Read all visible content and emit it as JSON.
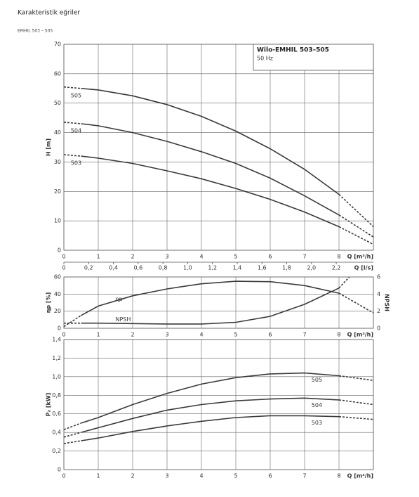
{
  "header": {
    "title": "Karakteristik eğriler",
    "subtitle": "EMHIL 503 – 505"
  },
  "chart_data": [
    {
      "type": "line",
      "ylabel": "H [m]",
      "xlabel": "Q [m³/h]",
      "x2label": "Q [l/s]",
      "box_title": "Wilo-EMHIL 503–505",
      "box_subtitle": "50 Hz",
      "xlim": [
        0,
        9
      ],
      "xticks": [
        0,
        1,
        2,
        3,
        4,
        5,
        6,
        7,
        8
      ],
      "x2lim": [
        0,
        2.5
      ],
      "x2ticks": [
        0,
        {
          "value": 0.2,
          "label": "0,2"
        },
        {
          "value": 0.4,
          "label": "0,4"
        },
        {
          "value": 0.6,
          "label": "0,6"
        },
        {
          "value": 0.8,
          "label": "0,8"
        },
        {
          "value": 1.0,
          "label": "1,0"
        },
        {
          "value": 1.2,
          "label": "1,2"
        },
        {
          "value": 1.4,
          "label": "1,4"
        },
        {
          "value": 1.6,
          "label": "1,6"
        },
        {
          "value": 1.8,
          "label": "1,8"
        },
        {
          "value": 2.0,
          "label": "2,0"
        },
        {
          "value": 2.2,
          "label": "2,2"
        }
      ],
      "ylim": [
        0,
        70
      ],
      "yticks": [
        0,
        10,
        20,
        30,
        40,
        50,
        60,
        70
      ],
      "grid": true,
      "series": [
        {
          "name": "505",
          "color": "#3a3a3a",
          "x": [
            0,
            0.5,
            1,
            2,
            3,
            4,
            5,
            6,
            7,
            8,
            9
          ],
          "values": [
            55.5,
            55,
            54.5,
            52.5,
            49.5,
            45.5,
            40.5,
            34.5,
            27.5,
            19,
            8
          ],
          "dashed": [
            [
              0,
              0.5
            ],
            [
              8,
              9
            ]
          ]
        },
        {
          "name": "504",
          "color": "#3a3a3a",
          "x": [
            0,
            0.5,
            1,
            2,
            3,
            4,
            5,
            6,
            7,
            8,
            9
          ],
          "values": [
            43.5,
            43,
            42.3,
            40,
            37,
            33.5,
            29.5,
            24.5,
            18.5,
            12,
            4.5
          ],
          "dashed": [
            [
              0,
              0.5
            ],
            [
              8,
              9
            ]
          ]
        },
        {
          "name": "503",
          "color": "#3a3a3a",
          "x": [
            0,
            0.5,
            1,
            2,
            3,
            4,
            5,
            6,
            7,
            8,
            9
          ],
          "values": [
            32.5,
            32,
            31.3,
            29.5,
            27,
            24.3,
            21,
            17.3,
            13,
            8,
            2
          ],
          "dashed": [
            [
              0,
              0.5
            ],
            [
              8,
              9
            ]
          ]
        }
      ]
    },
    {
      "type": "line",
      "ylabel": "ηp [%]",
      "y2label": "NPSH",
      "xlabel": "Q [m³/h]",
      "xlim": [
        0,
        9
      ],
      "xticks": [
        0,
        1,
        2,
        3,
        4,
        5,
        6,
        7,
        8
      ],
      "ylim": [
        0,
        60
      ],
      "yticks": [
        0,
        20,
        40,
        60
      ],
      "y2lim": [
        0,
        6
      ],
      "y2ticks": [
        0,
        2,
        4,
        6
      ],
      "grid": true,
      "series": [
        {
          "name": "ηp",
          "color": "#3a3a3a",
          "x": [
            0,
            0.5,
            1,
            2,
            3,
            4,
            5,
            6,
            7,
            8,
            9
          ],
          "values": [
            2,
            15,
            26,
            38,
            46,
            52,
            55,
            54.5,
            50,
            41,
            18
          ],
          "dashed": [
            [
              0,
              0.5
            ],
            [
              8,
              9
            ]
          ]
        },
        {
          "name": "NPSH",
          "color": "#3a3a3a",
          "axis": "y2",
          "x": [
            0,
            0.5,
            1,
            2,
            3,
            4,
            5,
            6,
            7,
            8,
            8.3
          ],
          "values": [
            0.6,
            0.6,
            0.6,
            0.55,
            0.5,
            0.5,
            0.7,
            1.4,
            2.8,
            4.7,
            6
          ],
          "dashed": [
            [
              0,
              0.5
            ],
            [
              8,
              8.3
            ]
          ]
        }
      ]
    },
    {
      "type": "line",
      "ylabel": "P₂ [kW]",
      "xlabel": "Q [m³/h]",
      "xlim": [
        0,
        9
      ],
      "xticks": [
        0,
        1,
        2,
        3,
        4,
        5,
        6,
        7,
        8
      ],
      "ylim": [
        0,
        1.4
      ],
      "yticks": [
        0,
        {
          "value": 0.2,
          "label": "0,2"
        },
        {
          "value": 0.4,
          "label": "0,4"
        },
        {
          "value": 0.6,
          "label": "0,6"
        },
        {
          "value": 0.8,
          "label": "0,8"
        },
        {
          "value": 1.0,
          "label": "1,0"
        },
        {
          "value": 1.2,
          "label": "1,2"
        },
        {
          "value": 1.4,
          "label": "1,4"
        }
      ],
      "grid": true,
      "series": [
        {
          "name": "505",
          "color": "#3a3a3a",
          "x": [
            0,
            0.5,
            1,
            2,
            3,
            4,
            5,
            6,
            7,
            8,
            9
          ],
          "values": [
            0.43,
            0.5,
            0.56,
            0.7,
            0.82,
            0.92,
            0.99,
            1.03,
            1.04,
            1.01,
            0.96
          ],
          "dashed": [
            [
              0,
              0.5
            ],
            [
              8,
              9
            ]
          ]
        },
        {
          "name": "504",
          "color": "#3a3a3a",
          "x": [
            0,
            0.5,
            1,
            2,
            3,
            4,
            5,
            6,
            7,
            8,
            9
          ],
          "values": [
            0.35,
            0.4,
            0.45,
            0.55,
            0.64,
            0.7,
            0.74,
            0.76,
            0.77,
            0.75,
            0.7
          ],
          "dashed": [
            [
              0,
              0.5
            ],
            [
              8,
              9
            ]
          ]
        },
        {
          "name": "503",
          "color": "#3a3a3a",
          "x": [
            0,
            0.5,
            1,
            2,
            3,
            4,
            5,
            6,
            7,
            8,
            9
          ],
          "values": [
            0.28,
            0.31,
            0.34,
            0.41,
            0.47,
            0.52,
            0.56,
            0.58,
            0.58,
            0.57,
            0.54
          ],
          "dashed": [
            [
              0,
              0.5
            ],
            [
              8,
              9
            ]
          ]
        }
      ]
    }
  ]
}
